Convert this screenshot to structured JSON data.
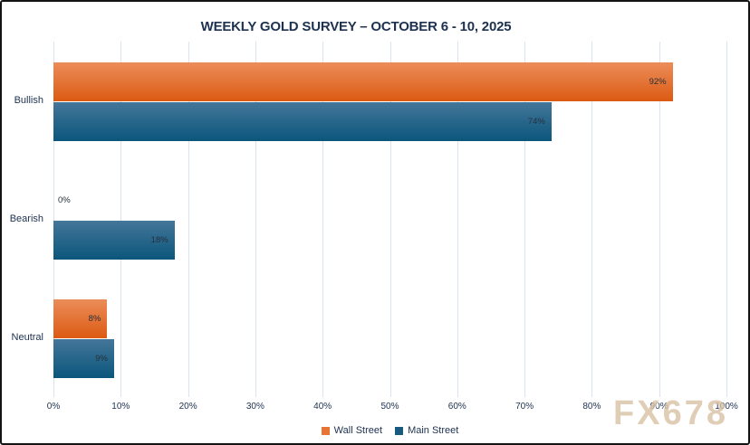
{
  "title": "WEEKLY GOLD SURVEY – OCTOBER 6 - 10, 2025",
  "watermark": "FX678",
  "colors": {
    "text": "#1d3150",
    "gridline": "#d9e4f0",
    "value_label": "#26303a",
    "wall_street": "#e87333",
    "main_street": "#17597f",
    "wall_street_gradient_top": "#eb8d59",
    "wall_street_gradient_bottom": "#dc5a13",
    "main_street_gradient_top": "#447699",
    "main_street_gradient_bottom": "#0b567c",
    "watermark": "#d9c1a4"
  },
  "chart_data": {
    "type": "bar",
    "orientation": "horizontal",
    "title": "WEEKLY GOLD SURVEY – OCTOBER 6 - 10, 2025",
    "categories": [
      "Bullish",
      "Bearish",
      "Neutral"
    ],
    "series": [
      {
        "name": "Wall Street",
        "values": [
          92,
          0,
          8
        ],
        "labels": [
          "92%",
          "0%",
          "8%"
        ]
      },
      {
        "name": "Main Street",
        "values": [
          74,
          18,
          9
        ],
        "labels": [
          "74%",
          "18%",
          "9%"
        ]
      }
    ],
    "xlim": [
      0,
      100
    ],
    "x_ticks": [
      0,
      10,
      20,
      30,
      40,
      50,
      60,
      70,
      80,
      90,
      100
    ],
    "x_tick_labels": [
      "0%",
      "10%",
      "20%",
      "30%",
      "40%",
      "50%",
      "60%",
      "70%",
      "80%",
      "90%",
      "100%"
    ],
    "grid": true,
    "legend_position": "bottom"
  },
  "legend": {
    "items": [
      {
        "label": "Wall Street"
      },
      {
        "label": "Main Street"
      }
    ]
  }
}
